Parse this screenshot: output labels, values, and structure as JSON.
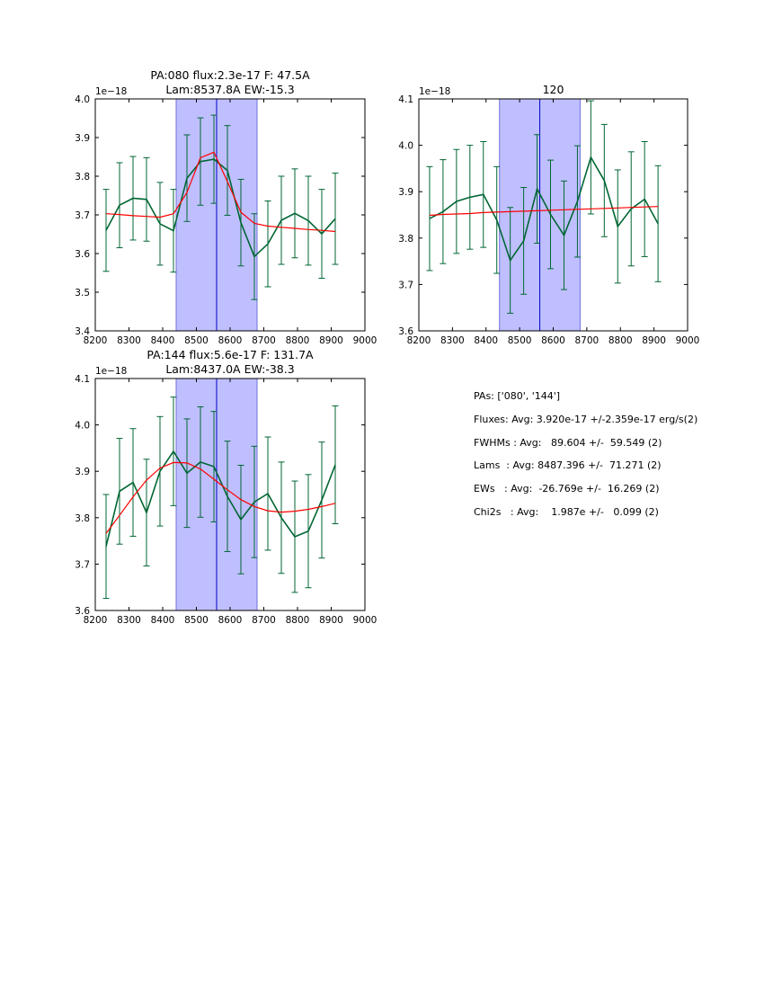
{
  "chart_data": [
    {
      "type": "line",
      "title": "PA:080 flux:2.3e-17 F: 47.5A\nLam:8537.8A EW:-15.3",
      "offset_text": "1e−18",
      "xlim": [
        8200,
        9000
      ],
      "ylim": [
        3.4,
        4.0
      ],
      "x_ticks": [
        "8200",
        "8300",
        "8400",
        "8500",
        "8600",
        "8700",
        "8800",
        "8900",
        "9000"
      ],
      "y_ticks": [
        "3.4",
        "3.5",
        "3.6",
        "3.7",
        "3.8",
        "3.9",
        "4.0"
      ],
      "band": [
        8440,
        8680
      ],
      "vline": 8560,
      "x": [
        8232,
        8272,
        8312,
        8352,
        8392,
        8432,
        8472,
        8512,
        8552,
        8592,
        8632,
        8672,
        8712,
        8752,
        8792,
        8832,
        8872,
        8912
      ],
      "series": [
        {
          "role": "data",
          "color": "#006633",
          "values": [
            3.66,
            3.725,
            3.743,
            3.74,
            3.677,
            3.659,
            3.795,
            3.838,
            3.844,
            3.815,
            3.68,
            3.592,
            3.625,
            3.686,
            3.704,
            3.685,
            3.651,
            3.69
          ],
          "err": [
            0.106,
            0.11,
            0.108,
            0.108,
            0.107,
            0.107,
            0.112,
            0.113,
            0.114,
            0.116,
            0.112,
            0.111,
            0.111,
            0.114,
            0.115,
            0.115,
            0.115,
            0.118
          ]
        },
        {
          "role": "fit",
          "color": "#ff0000",
          "values": [
            3.703,
            3.701,
            3.698,
            3.696,
            3.694,
            3.703,
            3.758,
            3.848,
            3.862,
            3.786,
            3.707,
            3.678,
            3.671,
            3.668,
            3.665,
            3.662,
            3.66,
            3.657
          ]
        }
      ]
    },
    {
      "type": "line",
      "title": "120",
      "offset_text": "1e−18",
      "xlim": [
        8200,
        9000
      ],
      "ylim": [
        3.6,
        4.1
      ],
      "x_ticks": [
        "8200",
        "8300",
        "8400",
        "8500",
        "8600",
        "8700",
        "8800",
        "8900",
        "9000"
      ],
      "y_ticks": [
        "3.6",
        "3.7",
        "3.8",
        "3.9",
        "4.0",
        "4.1"
      ],
      "band": [
        8440,
        8680
      ],
      "vline": 8560,
      "x": [
        8232,
        8272,
        8312,
        8352,
        8392,
        8432,
        8472,
        8512,
        8552,
        8592,
        8632,
        8672,
        8712,
        8752,
        8792,
        8832,
        8872,
        8912
      ],
      "series": [
        {
          "role": "data",
          "color": "#006633",
          "values": [
            3.842,
            3.857,
            3.879,
            3.888,
            3.894,
            3.839,
            3.752,
            3.794,
            3.906,
            3.851,
            3.806,
            3.879,
            3.974,
            3.924,
            3.825,
            3.863,
            3.884,
            3.831
          ],
          "err": [
            0.112,
            0.112,
            0.112,
            0.112,
            0.114,
            0.115,
            0.114,
            0.115,
            0.117,
            0.117,
            0.117,
            0.12,
            0.122,
            0.121,
            0.122,
            0.123,
            0.124,
            0.125
          ]
        },
        {
          "role": "fit",
          "color": "#ff0000",
          "values": [
            3.849,
            3.851,
            3.852,
            3.853,
            3.855,
            3.856,
            3.857,
            3.858,
            3.859,
            3.86,
            3.861,
            3.862,
            3.863,
            3.864,
            3.865,
            3.866,
            3.867,
            3.868
          ]
        }
      ]
    },
    {
      "type": "line",
      "title": "PA:144 flux:5.6e-17 F: 131.7A\nLam:8437.0A EW:-38.3",
      "offset_text": "1e−18",
      "xlim": [
        8200,
        9000
      ],
      "ylim": [
        3.6,
        4.1
      ],
      "x_ticks": [
        "8200",
        "8300",
        "8400",
        "8500",
        "8600",
        "8700",
        "8800",
        "8900",
        "9000"
      ],
      "y_ticks": [
        "3.6",
        "3.7",
        "3.8",
        "3.9",
        "4.0",
        "4.1"
      ],
      "band": [
        8440,
        8680
      ],
      "vline": 8560,
      "x": [
        8232,
        8272,
        8312,
        8352,
        8392,
        8432,
        8472,
        8512,
        8552,
        8592,
        8632,
        8672,
        8712,
        8752,
        8792,
        8832,
        8872,
        8912
      ],
      "series": [
        {
          "role": "data",
          "color": "#006633",
          "values": [
            3.738,
            3.857,
            3.876,
            3.811,
            3.9,
            3.943,
            3.896,
            3.92,
            3.91,
            3.846,
            3.796,
            3.834,
            3.852,
            3.8,
            3.759,
            3.771,
            3.838,
            3.914
          ],
          "err": [
            0.112,
            0.114,
            0.116,
            0.115,
            0.118,
            0.117,
            0.117,
            0.119,
            0.119,
            0.119,
            0.117,
            0.12,
            0.122,
            0.12,
            0.12,
            0.122,
            0.125,
            0.127
          ]
        },
        {
          "role": "fit",
          "color": "#ff0000",
          "values": [
            3.766,
            3.805,
            3.845,
            3.881,
            3.907,
            3.919,
            3.918,
            3.905,
            3.883,
            3.86,
            3.839,
            3.824,
            3.815,
            3.812,
            3.814,
            3.818,
            3.824,
            3.831
          ]
        }
      ]
    }
  ],
  "notes": [
    "PAs: ['080', '144']",
    "Fluxes: Avg: 3.920e-17 +/-2.359e-17 erg/s(2)",
    "FWHMs : Avg:   89.604 +/-  59.549 (2)",
    "Lams  : Avg: 8487.396 +/-  71.271 (2)",
    "EWs   : Avg:  -26.769e +/-  16.269 (2)",
    "Chi2s   : Avg:    1.987e +/-   0.099 (2)"
  ],
  "colors": {
    "band": "#bfbfff",
    "vline": "#0000cc",
    "data": "#006633",
    "fit": "#ff0000"
  }
}
